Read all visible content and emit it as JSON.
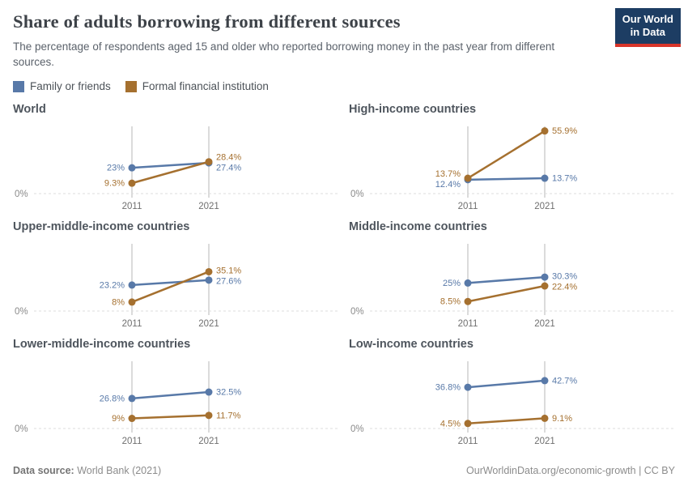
{
  "header": {
    "title": "Share of adults borrowing from different sources",
    "subtitle": "The percentage of respondents aged 15 and older who reported borrowing money in the past year from different sources.",
    "logo_line1": "Our World",
    "logo_line2": "in Data",
    "logo_bg": "#1d3d63",
    "logo_accent": "#d8352a"
  },
  "legend": [
    {
      "label": "Family or friends",
      "color": "#5879a8"
    },
    {
      "label": "Formal financial institution",
      "color": "#a5702f"
    }
  ],
  "chart_data": {
    "type": "line",
    "x": [
      2011,
      2021
    ],
    "x_tick_labels": [
      "2011",
      "2021"
    ],
    "y_zero_label": "0%",
    "ylim": [
      0,
      60
    ],
    "grid": "zero-baseline-dashed",
    "legend_position": "top-left",
    "colors": {
      "Family or friends": "#5879a8",
      "Formal financial institution": "#a5702f"
    },
    "panels": [
      {
        "title": "World",
        "series": [
          {
            "name": "Family or friends",
            "values": [
              23,
              27.4
            ],
            "labels": [
              "23%",
              "27.4%"
            ]
          },
          {
            "name": "Formal financial institution",
            "values": [
              9.3,
              28.4
            ],
            "labels": [
              "9.3%",
              "28.4%"
            ]
          }
        ]
      },
      {
        "title": "High-income countries",
        "series": [
          {
            "name": "Family or friends",
            "values": [
              12.4,
              13.7
            ],
            "labels": [
              "12.4%",
              "13.7%"
            ]
          },
          {
            "name": "Formal financial institution",
            "values": [
              13.7,
              55.9
            ],
            "labels": [
              "13.7%",
              "55.9%"
            ]
          }
        ]
      },
      {
        "title": "Upper-middle-income countries",
        "series": [
          {
            "name": "Family or friends",
            "values": [
              23.2,
              27.6
            ],
            "labels": [
              "23.2%",
              "27.6%"
            ]
          },
          {
            "name": "Formal financial institution",
            "values": [
              8,
              35.1
            ],
            "labels": [
              "8%",
              "35.1%"
            ]
          }
        ]
      },
      {
        "title": "Middle-income countries",
        "series": [
          {
            "name": "Family or friends",
            "values": [
              25,
              30.3
            ],
            "labels": [
              "25%",
              "30.3%"
            ]
          },
          {
            "name": "Formal financial institution",
            "values": [
              8.5,
              22.4
            ],
            "labels": [
              "8.5%",
              "22.4%"
            ]
          }
        ]
      },
      {
        "title": "Lower-middle-income countries",
        "series": [
          {
            "name": "Family or friends",
            "values": [
              26.8,
              32.5
            ],
            "labels": [
              "26.8%",
              "32.5%"
            ]
          },
          {
            "name": "Formal financial institution",
            "values": [
              9,
              11.7
            ],
            "labels": [
              "9%",
              "11.7%"
            ]
          }
        ]
      },
      {
        "title": "Low-income countries",
        "series": [
          {
            "name": "Family or friends",
            "values": [
              36.8,
              42.7
            ],
            "labels": [
              "36.8%",
              "42.7%"
            ]
          },
          {
            "name": "Formal financial institution",
            "values": [
              4.5,
              9.1
            ],
            "labels": [
              "4.5%",
              "9.1%"
            ]
          }
        ]
      }
    ]
  },
  "footer": {
    "source_label": "Data source:",
    "source_value": "World Bank (2021)",
    "right": "OurWorldinData.org/economic-growth | CC BY"
  }
}
